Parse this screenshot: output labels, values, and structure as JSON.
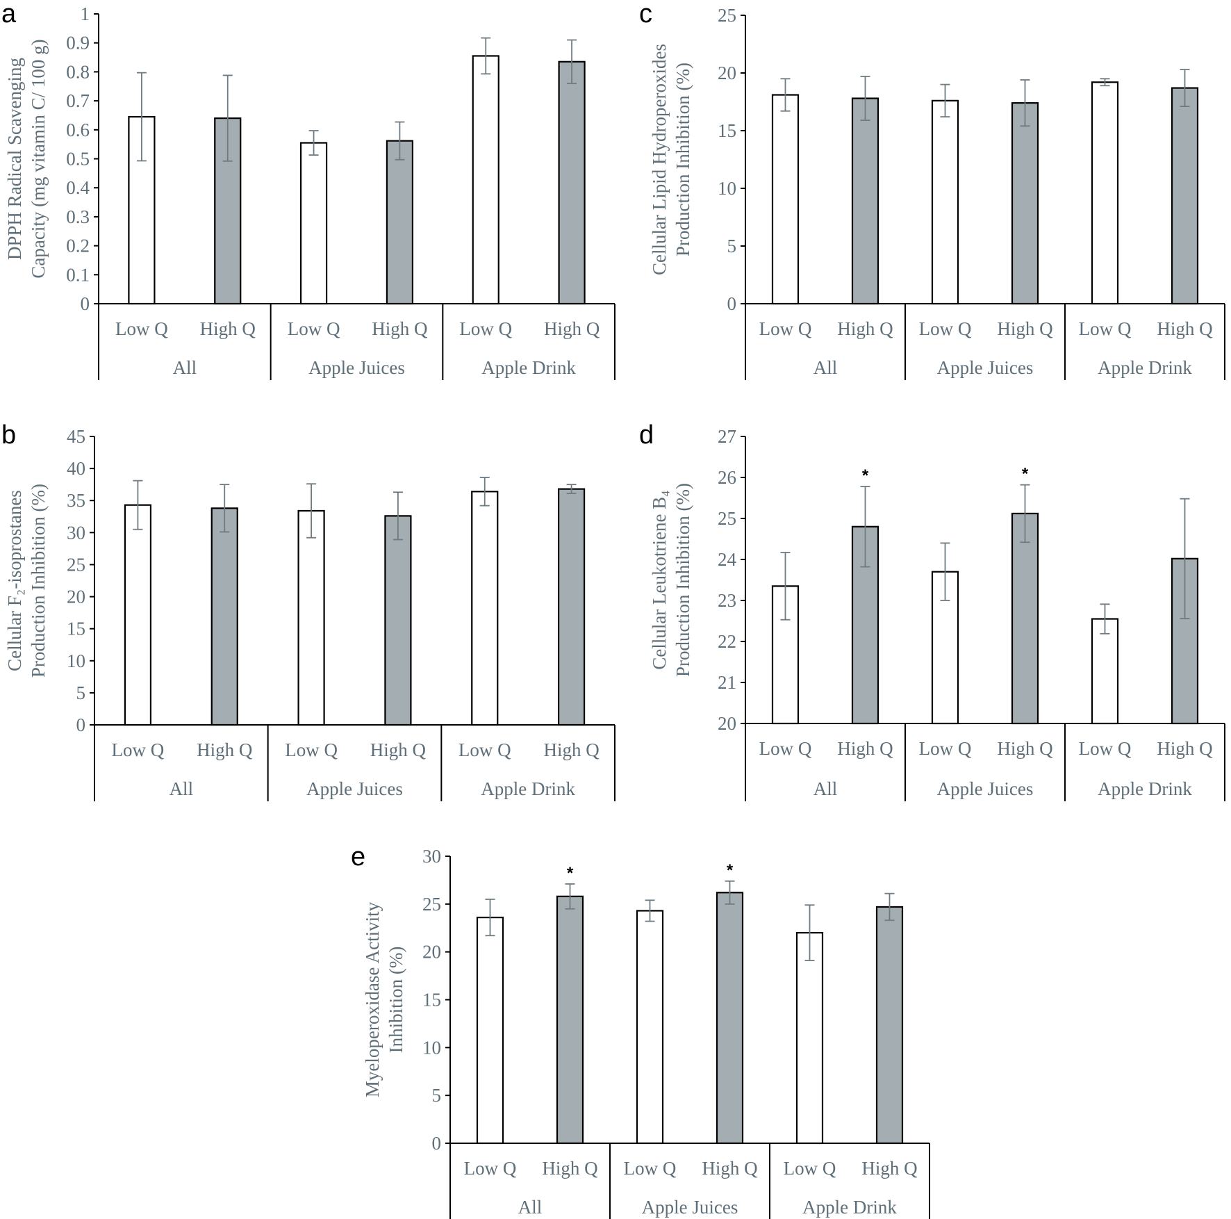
{
  "colors": {
    "low": "#ffffff",
    "high": "#a4aeb2",
    "text": "#5f6f79",
    "error": "#6e7b82"
  },
  "chart_data": [
    {
      "panel": "a",
      "type": "bar",
      "ylabel_lines": [
        "DPPH Radical Scavenging",
        "Capacity (mg vitamin C/ 100 g)"
      ],
      "ylim": [
        0,
        1
      ],
      "yticks": [
        "0",
        "0.1",
        "0.2",
        "0.3",
        "0.4",
        "0.5",
        "0.6",
        "0.7",
        "0.8",
        "0.9",
        "1"
      ],
      "groups": [
        "All",
        "Apple Juices",
        "Apple Drink"
      ],
      "categories": [
        "Low Q",
        "High Q",
        "Low Q",
        "High Q",
        "Low Q",
        "High Q"
      ],
      "values": [
        0.645,
        0.64,
        0.555,
        0.562,
        0.855,
        0.835
      ],
      "errors": [
        0.152,
        0.148,
        0.042,
        0.065,
        0.062,
        0.075
      ],
      "significance": [
        "",
        "",
        "",
        "",
        "",
        ""
      ]
    },
    {
      "panel": "c",
      "type": "bar",
      "ylabel_lines": [
        "Cellular Lipid Hydroperoxides",
        "Production Inhibition (%)"
      ],
      "ylim": [
        0,
        25
      ],
      "yticks": [
        "0",
        "5",
        "10",
        "15",
        "20",
        "25"
      ],
      "groups": [
        "All",
        "Apple Juices",
        "Apple Drink"
      ],
      "categories": [
        "Low Q",
        "High Q",
        "Low Q",
        "High Q",
        "Low Q",
        "High Q"
      ],
      "values": [
        18.1,
        17.8,
        17.6,
        17.4,
        19.2,
        18.7
      ],
      "errors": [
        1.4,
        1.9,
        1.4,
        2.0,
        0.3,
        1.6
      ],
      "significance": [
        "",
        "",
        "",
        "",
        "",
        ""
      ]
    },
    {
      "panel": "b",
      "type": "bar",
      "ylabel_lines": [
        "Cellular F₂-isoprostanes",
        "Production Inhibition (%)"
      ],
      "ylim": [
        0,
        45
      ],
      "yticks": [
        "0",
        "5",
        "10",
        "15",
        "20",
        "25",
        "30",
        "35",
        "40",
        "45"
      ],
      "groups": [
        "All",
        "Apple Juices",
        "Apple Drink"
      ],
      "categories": [
        "Low Q",
        "High Q",
        "Low Q",
        "High Q",
        "Low Q",
        "High Q"
      ],
      "values": [
        34.3,
        33.8,
        33.4,
        32.6,
        36.4,
        36.8
      ],
      "errors": [
        3.8,
        3.7,
        4.2,
        3.7,
        2.2,
        0.7
      ],
      "significance": [
        "",
        "",
        "",
        "",
        "",
        ""
      ]
    },
    {
      "panel": "d",
      "type": "bar",
      "ylabel_lines": [
        "Cellular Leukotriene B₄",
        "Production Inhibition (%)"
      ],
      "ylim": [
        20,
        27
      ],
      "yticks": [
        "20",
        "21",
        "22",
        "23",
        "24",
        "25",
        "26",
        "27"
      ],
      "groups": [
        "All",
        "Apple Juices",
        "Apple Drink"
      ],
      "categories": [
        "Low Q",
        "High Q",
        "Low Q",
        "High Q",
        "Low Q",
        "High Q"
      ],
      "values": [
        23.35,
        24.8,
        23.7,
        25.12,
        22.55,
        24.02
      ],
      "errors": [
        0.82,
        0.98,
        0.7,
        0.7,
        0.36,
        1.46
      ],
      "significance": [
        "",
        "*",
        "",
        "*",
        "",
        ""
      ]
    },
    {
      "panel": "e",
      "type": "bar",
      "ylabel_lines": [
        "Myeloperoxidase Activity",
        "Inhibition (%)"
      ],
      "ylim": [
        0,
        30
      ],
      "yticks": [
        "0",
        "5",
        "10",
        "15",
        "20",
        "25",
        "30"
      ],
      "groups": [
        "All",
        "Apple Juices",
        "Apple Drink"
      ],
      "categories": [
        "Low Q",
        "High Q",
        "Low Q",
        "High Q",
        "Low Q",
        "High Q"
      ],
      "values": [
        23.6,
        25.8,
        24.3,
        26.2,
        22.0,
        24.7
      ],
      "errors": [
        1.9,
        1.3,
        1.1,
        1.2,
        2.9,
        1.4
      ],
      "significance": [
        "",
        "*",
        "",
        "*",
        "",
        ""
      ]
    }
  ]
}
